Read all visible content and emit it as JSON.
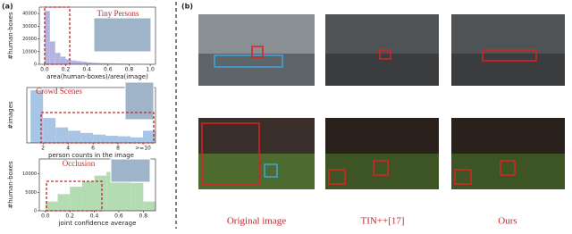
{
  "chart_data": [
    {
      "type": "histogram",
      "panel_label": "(a)",
      "annotation": "Tiny Persons",
      "xlabel": "area(human-boxes)/area(image)",
      "ylabel": "#human-boxes",
      "color": "#b4b4e2",
      "bins": [
        0,
        0.05,
        0.1,
        0.15,
        0.2,
        0.25,
        0.3,
        0.35,
        0.4,
        0.45,
        0.5,
        0.55,
        0.6,
        0.65,
        0.7,
        0.75,
        0.8,
        0.85,
        0.9,
        0.95,
        1.0
      ],
      "counts": [
        42000,
        18000,
        9000,
        6000,
        4000,
        3000,
        2500,
        2000,
        1500,
        1200,
        1000,
        900,
        800,
        700,
        600,
        500,
        400,
        400,
        300,
        300
      ],
      "xlim": [
        -0.05,
        1.05
      ],
      "ylim": [
        0,
        45000
      ],
      "xticks": [
        {
          "value": 0,
          "label": "0.0"
        },
        {
          "value": 0.2,
          "label": "0.2"
        },
        {
          "value": 0.4,
          "label": "0.4"
        },
        {
          "value": 0.6,
          "label": "0.6"
        },
        {
          "value": 0.8,
          "label": "0.8"
        },
        {
          "value": 1,
          "label": "1.0"
        }
      ],
      "yticks": [
        0,
        10000,
        20000,
        30000,
        40000
      ]
    },
    {
      "type": "histogram",
      "annotation": "Crowd Scenes",
      "xlabel": "person counts in the image",
      "ylabel": "#images",
      "color": "#a9c5e6",
      "bins": [
        1,
        2,
        3,
        4,
        5,
        6,
        7,
        8,
        9,
        10,
        11
      ],
      "counts": [
        95,
        45,
        28,
        22,
        18,
        15,
        13,
        12,
        10,
        22
      ],
      "xlim": [
        0.7,
        11
      ],
      "ylim": [
        0,
        100
      ],
      "xticks": [
        2,
        4,
        6,
        8,
        {
          "value": 10,
          "label": ">=10"
        }
      ]
    },
    {
      "type": "histogram",
      "annotation": "Occlusion",
      "xlabel": "joint confidence average",
      "ylabel": "#human-boxes",
      "color": "#b3dcb3",
      "bins": [
        0,
        0.1,
        0.2,
        0.3,
        0.4,
        0.5,
        0.6,
        0.7,
        0.8,
        0.9
      ],
      "counts": [
        2500,
        4500,
        6500,
        8000,
        9500,
        10500,
        9500,
        7500,
        2500
      ],
      "xlim": [
        -0.05,
        0.9
      ],
      "ylim": [
        0,
        14000
      ],
      "xticks": [
        {
          "value": 0,
          "label": "0.0"
        },
        {
          "value": 0.2,
          "label": "0.2"
        },
        {
          "value": 0.4,
          "label": "0.4"
        },
        {
          "value": 0.6,
          "label": "0.6"
        },
        {
          "value": 0.8,
          "label": "0.8"
        }
      ],
      "yticks": [
        0,
        5000,
        10000
      ]
    }
  ],
  "panel_b": {
    "label": "(b)",
    "captions": [
      "Original image",
      "TIN++[17]",
      "Ours"
    ]
  }
}
